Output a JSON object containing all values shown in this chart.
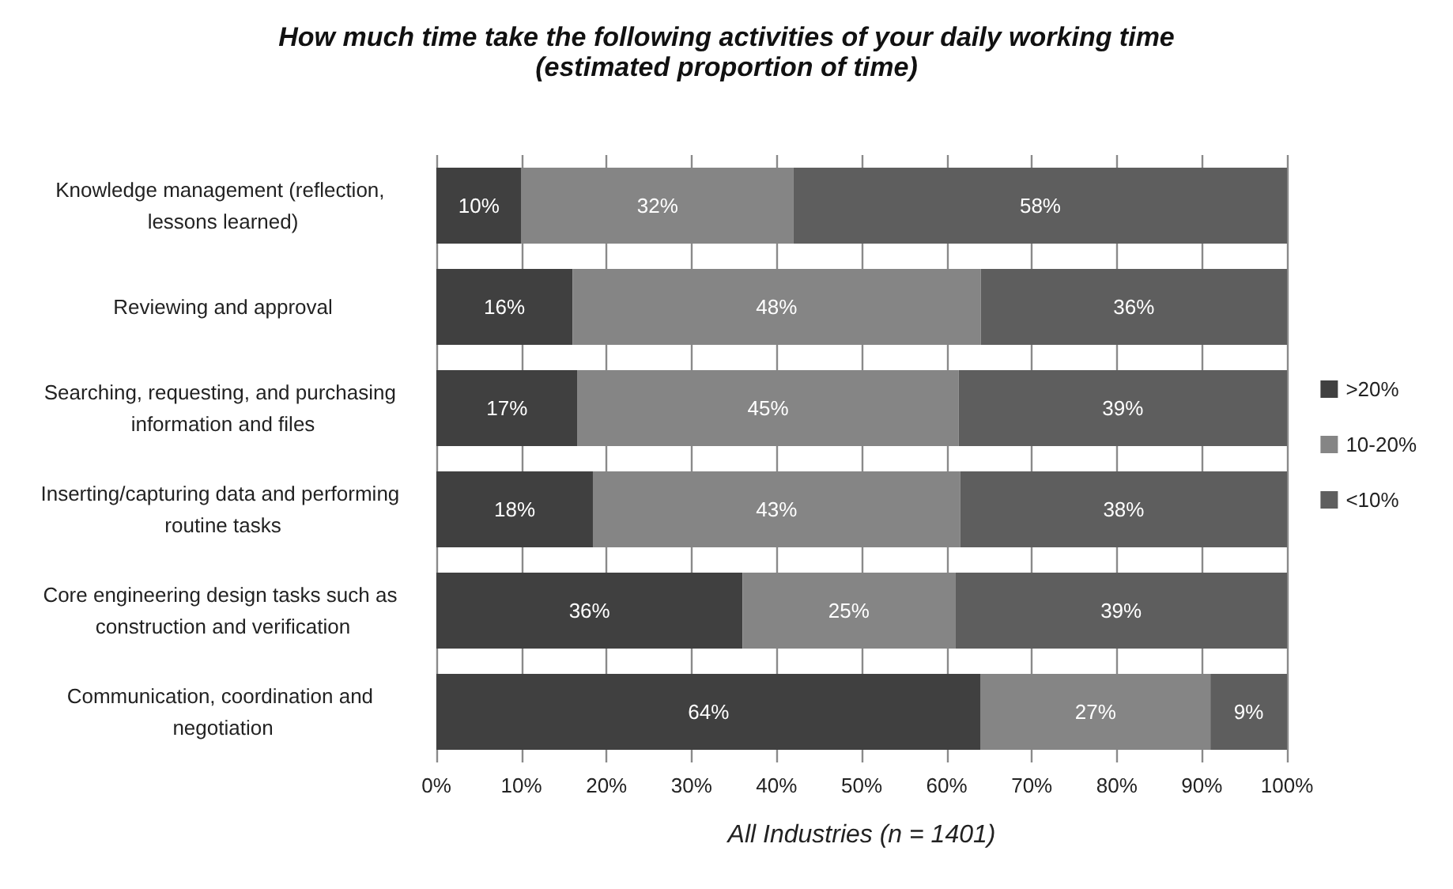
{
  "chart_data": {
    "type": "bar",
    "orientation": "horizontal",
    "stacked": true,
    "title": "How much time take the following activities of your daily working time",
    "subtitle": "(estimated proportion of time)",
    "xlabel": "All Industries (n = 1401)",
    "categories": [
      "Knowledge management (reflection, lessons learned)",
      "Reviewing and approval",
      "Searching, requesting, and purchasing information and files",
      "Inserting/capturing data and performing routine tasks",
      "Core engineering design tasks such as construction and verification",
      "Communication, coordination and negotiation"
    ],
    "series": [
      {
        "name": ">20%",
        "color": "#404040",
        "values": [
          10,
          16,
          16.6,
          18.4,
          36,
          64
        ],
        "value_labels": [
          "10%",
          "16%",
          "17%",
          "18%",
          "36%",
          "64%"
        ]
      },
      {
        "name": "10-20%",
        "color": "#858585",
        "values": [
          32,
          48,
          44.8,
          43.2,
          25,
          27
        ],
        "value_labels": [
          "32%",
          "48%",
          "45%",
          "43%",
          "25%",
          "27%"
        ]
      },
      {
        "name": "<10%",
        "color": "#5e5e5e",
        "values": [
          58,
          36,
          38.6,
          38.4,
          39,
          9
        ],
        "value_labels": [
          "58%",
          "36%",
          "39%",
          "38%",
          "39%",
          "9%"
        ]
      }
    ],
    "xlim": [
      0,
      100
    ],
    "xticks": [
      {
        "value": 0,
        "label": "0%"
      },
      {
        "value": 10,
        "label": "10%"
      },
      {
        "value": 20,
        "label": "20%"
      },
      {
        "value": 30,
        "label": "30%"
      },
      {
        "value": 40,
        "label": "40%"
      },
      {
        "value": 50,
        "label": "50%"
      },
      {
        "value": 60,
        "label": "60%"
      },
      {
        "value": 70,
        "label": "70%"
      },
      {
        "value": 80,
        "label": "80%"
      },
      {
        "value": 90,
        "label": "90%"
      },
      {
        "value": 100,
        "label": "100%"
      }
    ],
    "grid": "x",
    "legend": "right"
  }
}
